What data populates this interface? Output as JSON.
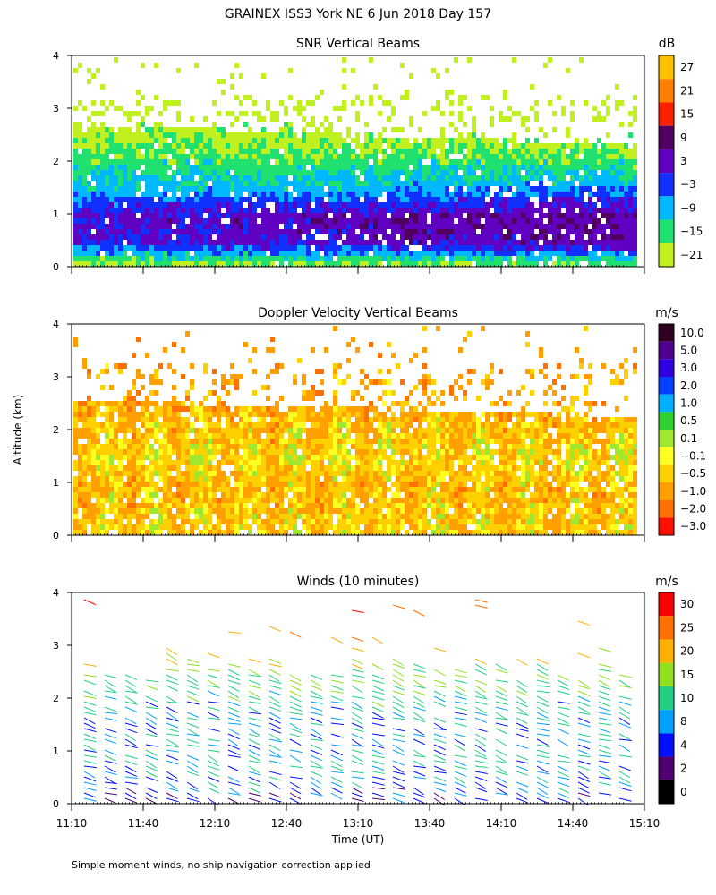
{
  "page_title": "GRAINEX ISS3 York NE   6 Jun 2018 Day 157",
  "footer_note": "Simple moment winds, no ship navigation correction applied",
  "shared_axes": {
    "ylabel": "Altitude (km)",
    "xlabel": "Time (UT)",
    "x_ticks": [
      "11:10",
      "11:40",
      "12:10",
      "12:40",
      "13:10",
      "13:40",
      "14:10",
      "14:40",
      "15:10"
    ],
    "x_range_minutes": [
      0,
      240
    ],
    "y_ticks": [
      "0",
      "1",
      "2",
      "3",
      "4"
    ],
    "y_range_km": [
      0,
      4
    ]
  },
  "chart_data": [
    {
      "type": "heatmap",
      "title": "SNR Vertical Beams",
      "unit": "dB",
      "colorbar_labels": [
        "27",
        "21",
        "15",
        "9",
        "3",
        "−3",
        "−9",
        "−15",
        "−21"
      ],
      "colorbar_colors": [
        "#ffc000",
        "#ff8000",
        "#ff2000",
        "#500060",
        "#6000c0",
        "#1030ff",
        "#00b8ff",
        "#20e070",
        "#c0f020"
      ],
      "profile": [
        {
          "alt": 0.1,
          "value": -15
        },
        {
          "alt": 0.5,
          "value": 5
        },
        {
          "alt": 1.0,
          "value": 7
        },
        {
          "alt": 1.5,
          "value": -5
        },
        {
          "alt": 2.0,
          "value": -12
        },
        {
          "alt": 2.5,
          "value": -17
        },
        {
          "alt": 3.0,
          "value": -20
        },
        {
          "alt": 3.5,
          "value": -21
        }
      ]
    },
    {
      "type": "heatmap",
      "title": "Doppler Velocity Vertical Beams",
      "unit": "m/s",
      "colorbar_labels": [
        "10.0",
        "5.0",
        "3.0",
        "2.0",
        "1.0",
        "0.5",
        "0.1",
        "−0.1",
        "−0.5",
        "−1.0",
        "−2.0",
        "−3.0"
      ],
      "colorbar_colors": [
        "#300020",
        "#500090",
        "#3000e0",
        "#0040ff",
        "#00b0ff",
        "#30d030",
        "#a0e830",
        "#ffff20",
        "#ffd000",
        "#ffa000",
        "#ff7000",
        "#ff1000"
      ],
      "profile": [
        {
          "alt": 0.2,
          "value": -0.3
        },
        {
          "alt": 1.0,
          "value": -0.5
        },
        {
          "alt": 1.5,
          "value": -0.2
        },
        {
          "alt": 2.0,
          "value": -0.4
        },
        {
          "alt": 2.5,
          "value": -0.6
        },
        {
          "alt": 3.5,
          "value": -0.8
        }
      ]
    },
    {
      "type": "scatter",
      "title": "Winds (10 minutes)",
      "unit": "m/s",
      "colorbar_labels": [
        "30",
        "25",
        "20",
        "15",
        "10",
        "8",
        "4",
        "2",
        "0"
      ],
      "colorbar_colors": [
        "#ff0000",
        "#ff7000",
        "#ffb000",
        "#90e020",
        "#20d080",
        "#00a0ff",
        "#0010ff",
        "#500070",
        "#000000"
      ],
      "wind_profile": [
        {
          "alt": 0.2,
          "speed": 6
        },
        {
          "alt": 0.5,
          "speed": 9
        },
        {
          "alt": 1.0,
          "speed": 11
        },
        {
          "alt": 1.5,
          "speed": 9
        },
        {
          "alt": 2.0,
          "speed": 12
        },
        {
          "alt": 2.5,
          "speed": 16
        },
        {
          "alt": 3.0,
          "speed": 22
        },
        {
          "alt": 3.5,
          "speed": 28
        },
        {
          "alt": 3.9,
          "speed": 31
        }
      ]
    }
  ]
}
